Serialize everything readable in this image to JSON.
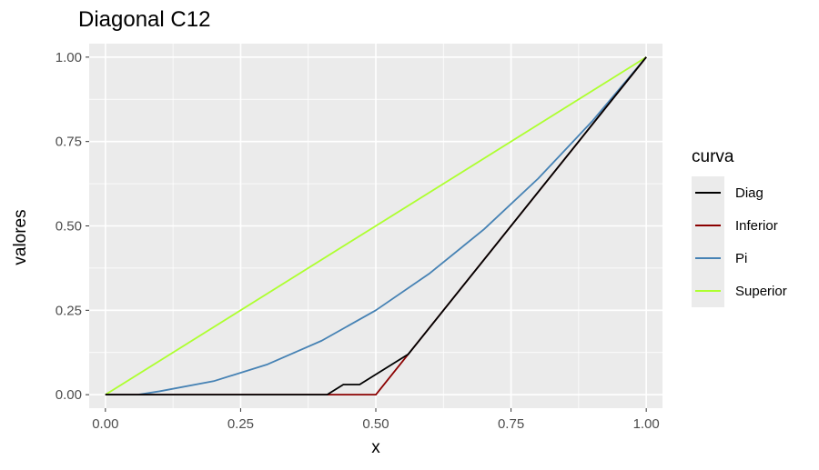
{
  "chart_data": {
    "type": "line",
    "title": "Diagonal C12",
    "xlabel": "x",
    "ylabel": "valores",
    "xlim": [
      -0.03,
      1.03
    ],
    "ylim": [
      -0.04,
      1.04
    ],
    "x_ticks": [
      "0.00",
      "0.25",
      "0.50",
      "0.75",
      "1.00"
    ],
    "y_ticks": [
      "0.00",
      "0.25",
      "0.50",
      "0.75",
      "1.00"
    ],
    "legend_title": "curva",
    "legend_position": "right",
    "series": [
      {
        "name": "Diag",
        "color": "#000000",
        "points": [
          [
            0,
            0
          ],
          [
            0.41,
            0
          ],
          [
            0.44,
            0.03
          ],
          [
            0.47,
            0.03
          ],
          [
            0.5,
            0.06
          ],
          [
            0.56,
            0.12
          ],
          [
            0.6,
            0.2
          ],
          [
            0.7,
            0.4
          ],
          [
            0.8,
            0.6
          ],
          [
            0.9,
            0.8
          ],
          [
            1,
            1
          ]
        ]
      },
      {
        "name": "Inferior",
        "color": "#8b0000",
        "points": [
          [
            0,
            0
          ],
          [
            0.5,
            0
          ],
          [
            1,
            1
          ]
        ]
      },
      {
        "name": "Pi",
        "color": "#4682b4",
        "points": [
          [
            0,
            0
          ],
          [
            0.06,
            0
          ],
          [
            0.1,
            0.01
          ],
          [
            0.2,
            0.04
          ],
          [
            0.3,
            0.09
          ],
          [
            0.4,
            0.16
          ],
          [
            0.5,
            0.25
          ],
          [
            0.6,
            0.36
          ],
          [
            0.7,
            0.49
          ],
          [
            0.8,
            0.64
          ],
          [
            0.9,
            0.81
          ],
          [
            1,
            1
          ]
        ]
      },
      {
        "name": "Superior",
        "color": "#adff2f",
        "points": [
          [
            0,
            0
          ],
          [
            1,
            1
          ]
        ]
      }
    ]
  }
}
